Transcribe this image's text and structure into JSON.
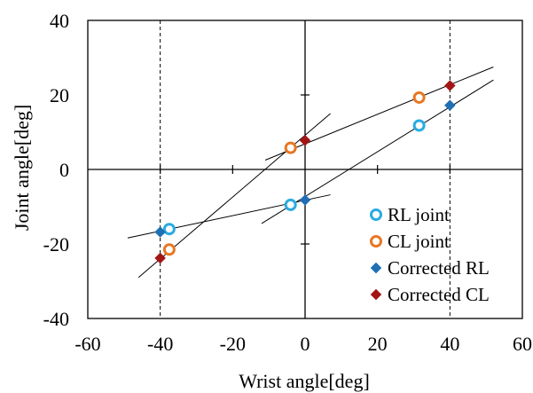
{
  "chart_data": {
    "type": "scatter",
    "xlabel": "Wrist angle[deg]",
    "ylabel": "Joint angle[deg]",
    "xlim": [
      -60,
      60
    ],
    "ylim": [
      -40,
      40
    ],
    "xticks": [
      "-60",
      "-40",
      "-20",
      "0",
      "20",
      "40",
      "60"
    ],
    "yticks": [
      "-40",
      "-20",
      "0",
      "20",
      "40"
    ],
    "xtick_values": [
      -60,
      -40,
      -20,
      0,
      20,
      40,
      60
    ],
    "ytick_values": [
      -40,
      -20,
      0,
      20,
      40
    ],
    "grid": false,
    "legend_position": "bottom-right",
    "series": [
      {
        "name": "RL joint",
        "marker": "circle-open",
        "color": "#29abe2",
        "points": [
          [
            -37.5,
            -16
          ],
          [
            -4,
            -9.5
          ],
          [
            31.5,
            11.8
          ]
        ]
      },
      {
        "name": "CL joint",
        "marker": "circle-open",
        "color": "#e87722",
        "points": [
          [
            -37.5,
            -21.5
          ],
          [
            -4,
            5.8
          ],
          [
            31.5,
            19.3
          ]
        ]
      },
      {
        "name": "Corrected RL",
        "marker": "diamond",
        "color": "#1f6fb5",
        "points": [
          [
            -40,
            -16.8
          ],
          [
            0,
            -8.2
          ],
          [
            40,
            17.2
          ]
        ]
      },
      {
        "name": "Corrected CL",
        "marker": "diamond",
        "color": "#a31515",
        "points": [
          [
            -40,
            -23.8
          ],
          [
            0,
            7.8
          ],
          [
            40,
            22.5
          ]
        ]
      }
    ],
    "fit_lines": [
      {
        "x": [
          -49,
          7
        ],
        "y": [
          -18.4,
          -6.8
        ]
      },
      {
        "x": [
          -46,
          7
        ],
        "y": [
          -29,
          15
        ]
      },
      {
        "x": [
          -12,
          52
        ],
        "y": [
          -14.5,
          24
        ]
      },
      {
        "x": [
          -11,
          52
        ],
        "y": [
          2.5,
          27.5
        ]
      }
    ],
    "reference_lines_x": [
      -40,
      40
    ]
  }
}
